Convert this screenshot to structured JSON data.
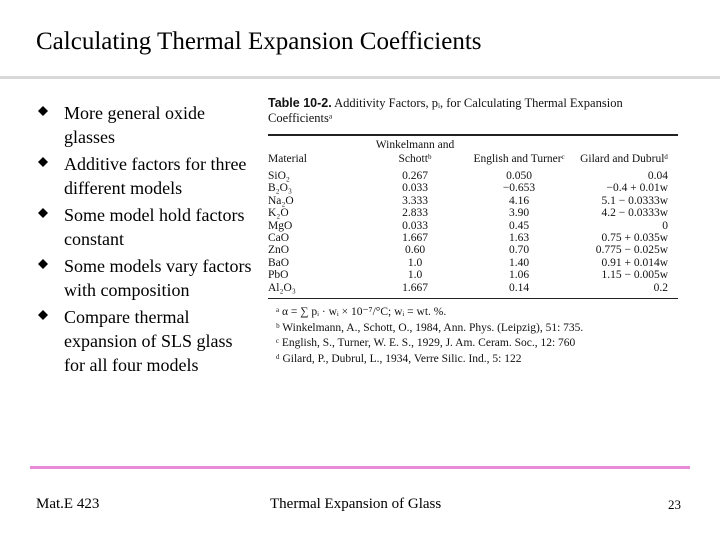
{
  "slide": {
    "title": "Calculating Thermal Expansion Coefficients"
  },
  "bullets": [
    "More general oxide glasses",
    "Additive factors for three different models",
    "Some model hold factors constant",
    "Some models vary factors with composition",
    "Compare thermal expansion of SLS glass for all four models"
  ],
  "bullet_icon": "diamond-bullet-icon",
  "table": {
    "caption_label": "Table 10-2.",
    "caption_text": "Additivity Factors, pᵢ, for Calculating Thermal Expansion Coefficientsᵃ",
    "headers": [
      "Material",
      "Winkelmann and Schottᵇ",
      "English and Turnerᶜ",
      "Gilard and Dubrulᵈ"
    ],
    "rows": [
      [
        "SiO₂",
        "0.267",
        "0.050",
        "0.04"
      ],
      [
        "B₂O₃",
        "0.033",
        "−0.653",
        "−0.4 + 0.01w"
      ],
      [
        "Na₂O",
        "3.333",
        "4.16",
        "5.1 − 0.0333w"
      ],
      [
        "K₂O",
        "2.833",
        "3.90",
        "4.2 − 0.0333w"
      ],
      [
        "MgO",
        "0.033",
        "0.45",
        "0"
      ],
      [
        "CaO",
        "1.667",
        "1.63",
        "0.75 + 0.035w"
      ],
      [
        "ZnO",
        "0.60",
        "0.70",
        "0.775 − 0.025w"
      ],
      [
        "BaO",
        "1.0",
        "1.40",
        "0.91 + 0.014w"
      ],
      [
        "PbO",
        "1.0",
        "1.06",
        "1.15 − 0.005w"
      ],
      [
        "Al₂O₃",
        "1.667",
        "0.14",
        "0.2"
      ]
    ],
    "notes": [
      "ᵃ α = ∑ pᵢ · wᵢ × 10⁻⁷/°C; wᵢ = wt. %.",
      "ᵇ Winkelmann, A., Schott, O., 1984, Ann. Phys. (Leipzig), 51: 735.",
      "ᶜ English, S., Turner, W. E. S., 1929, J. Am. Ceram. Soc., 12: 760",
      "ᵈ Gilard, P., Dubrul, L., 1934, Verre Silic. Ind., 5: 122"
    ]
  },
  "footer": {
    "left": "Mat.E 423",
    "center": "Thermal Expansion of Glass",
    "page": "23"
  },
  "colors": {
    "top_rule": "#d8d8d8",
    "bottom_rule": "#e88ad6",
    "text": "#000000"
  }
}
